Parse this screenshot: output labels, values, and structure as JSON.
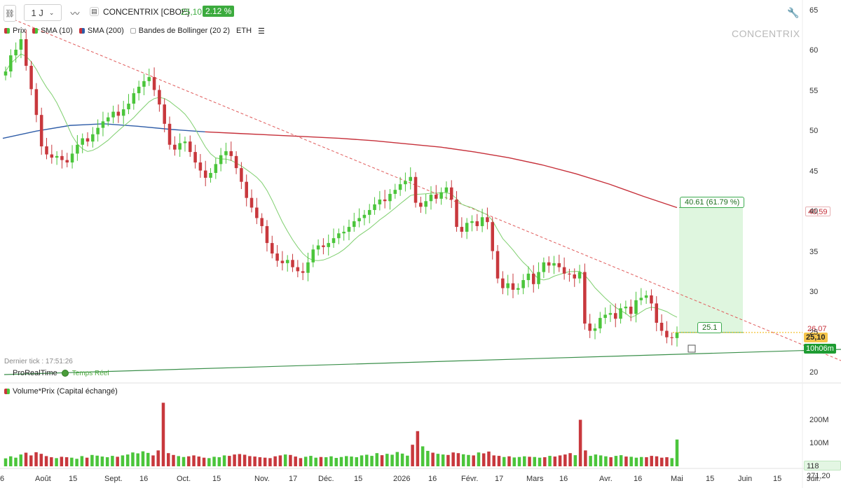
{
  "toolbar": {
    "interval": "1 J",
    "symbol": "CONCENTRIX [CBOE]",
    "price": "25,10",
    "change": "2.12 %"
  },
  "legend": {
    "price": "Prix",
    "sma10": "SMA (10)",
    "sma200": "SMA (200)",
    "bollinger": "Bandes de Bollinger (20 2)",
    "eth": "ETH"
  },
  "watermark": "CONCENTRIX",
  "last_tick": "Dernier tick : 17:51:26",
  "prt": {
    "name": "ProRealTime",
    "status": "Temps Réel"
  },
  "volume_legend": "Volume*Prix (Capital échangé)",
  "annotations": {
    "target_box": "40.61 (61.79 %)",
    "entry_box": "25.1"
  },
  "price_tags": {
    "sma200": "40,59",
    "sma10": "26,07",
    "last": "25,10",
    "countdown": "10h06m"
  },
  "price_axis": {
    "labels": [
      "65",
      "60",
      "55",
      "50",
      "45",
      "40",
      "35",
      "30",
      "25",
      "20"
    ]
  },
  "volume_axis": {
    "labels": [
      "200M",
      "100M"
    ],
    "last_value": "118 271,20"
  },
  "time_axis": {
    "labels": [
      "6",
      "Août",
      "15",
      "Sept.",
      "16",
      "Oct.",
      "15",
      "Nov.",
      "17",
      "Déc.",
      "15",
      "2026",
      "16",
      "Févr.",
      "17",
      "Mars",
      "16",
      "Avr.",
      "16",
      "Mai",
      "15",
      "Juin",
      "15",
      "Juil."
    ]
  },
  "colors": {
    "up": "#4bc53b",
    "down": "#c8383d",
    "sma10": "#4bc53b",
    "sma200": "#c6303a",
    "sma200_blue": "#2f5da8",
    "trend_red": "#e05a5a",
    "trend_green": "#3a8f4a",
    "target_fill": "#d9f5d9"
  },
  "chart_data": {
    "type": "candlestick",
    "series": [
      {
        "name": "Prix",
        "ohlc_note": "daily candles"
      },
      {
        "name": "SMA (10)"
      },
      {
        "name": "SMA (200)"
      }
    ],
    "closes": [
      57.5,
      59.5,
      60.2,
      61.5,
      58.2,
      55.3,
      52.1,
      48.2,
      47.2,
      46.8,
      47.0,
      46.5,
      46.2,
      47.3,
      48.4,
      49.2,
      48.8,
      49.7,
      50.5,
      51.3,
      51.8,
      52.5,
      52.0,
      52.8,
      53.5,
      54.8,
      55.6,
      56.3,
      56.8,
      55.2,
      53.4,
      51.0,
      48.4,
      47.8,
      48.6,
      48.8,
      47.5,
      46.2,
      45.2,
      44.3,
      44.9,
      46.0,
      47.1,
      47.6,
      47.0,
      45.5,
      43.8,
      41.8,
      40.6,
      39.3,
      38.3,
      36.2,
      34.9,
      34.0,
      33.7,
      34.1,
      33.2,
      32.7,
      32.5,
      33.8,
      35.4,
      35.9,
      35.7,
      36.2,
      36.8,
      37.4,
      37.6,
      38.2,
      38.9,
      39.3,
      39.7,
      40.3,
      41.0,
      41.6,
      41.4,
      42.3,
      42.8,
      43.5,
      43.9,
      44.4,
      41.2,
      40.7,
      41.4,
      42.2,
      41.7,
      42.5,
      43.1,
      41.6,
      38.2,
      37.6,
      38.7,
      38.9,
      38.3,
      39.4,
      38.8,
      35.2,
      31.8,
      30.6,
      31.2,
      30.4,
      30.6,
      31.6,
      32.4,
      31.1,
      32.6,
      33.8,
      33.4,
      33.7,
      33.2,
      32.4,
      32.3,
      31.8,
      32.6,
      26.2,
      25.3,
      25.6,
      26.9,
      27.3,
      27.5,
      26.8,
      28.1,
      28.3,
      27.4,
      29.1,
      29.4,
      29.7,
      28.7,
      26.3,
      25.3,
      24.5,
      24.4,
      25.1
    ],
    "volume_millions": [
      35,
      44,
      38,
      52,
      60,
      48,
      62,
      55,
      45,
      40,
      36,
      42,
      40,
      38,
      33,
      45,
      38,
      50,
      47,
      43,
      40,
      46,
      42,
      48,
      52,
      61,
      57,
      66,
      59,
      48,
      70,
      280,
      58,
      50,
      45,
      41,
      44,
      48,
      43,
      38,
      36,
      42,
      40,
      48,
      46,
      52,
      54,
      51,
      45,
      43,
      40,
      38,
      36,
      44,
      48,
      52,
      50,
      43,
      36,
      42,
      46,
      38,
      41,
      40,
      44,
      37,
      41,
      45,
      43,
      40,
      48,
      51,
      46,
      58,
      49,
      55,
      51,
      63,
      56,
      47,
      95,
      155,
      88,
      68,
      60,
      55,
      52,
      50,
      61,
      58,
      53,
      50,
      48,
      61,
      57,
      65,
      48,
      46,
      41,
      44,
      39,
      41,
      44,
      42,
      41,
      38,
      40,
      46,
      43,
      48,
      52,
      58,
      49,
      205,
      70,
      46,
      52,
      48,
      44,
      40,
      46,
      49,
      43,
      42,
      38,
      41,
      40,
      46,
      44,
      38,
      40,
      36,
      118
    ],
    "sma200_values": [
      49.2,
      50.1,
      50.8,
      51.0,
      50.7,
      50.3,
      50.0,
      49.8,
      49.6,
      49.4,
      49.2,
      48.9,
      48.5,
      48.1,
      47.5,
      46.8,
      45.9,
      44.8,
      43.5,
      42.0,
      40.6
    ],
    "price_range": [
      19,
      65.5
    ],
    "volume_range": [
      0,
      290
    ],
    "target_value": 40.61,
    "entry_value": 25.1,
    "current_price": 25.1
  }
}
